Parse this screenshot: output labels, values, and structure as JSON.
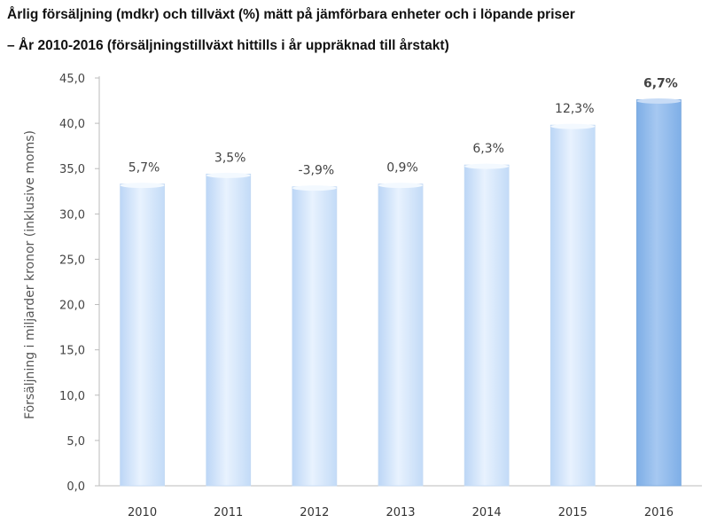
{
  "chart_data": {
    "type": "bar",
    "title": "Årlig försäljning (mdkr) och tillväxt (%) mätt på jämförbara enheter och i löpande priser",
    "subtitle": "– År 2010-2016 (försäljningstillväxt hittills i år uppräknad till årstakt)",
    "xlabel": "",
    "ylabel": "Försäljning i miljarder kronor (inklusive moms)",
    "ylim": [
      0,
      45
    ],
    "yticks": [
      "0,0",
      "5,0",
      "10,0",
      "15,0",
      "20,0",
      "25,0",
      "30,0",
      "35,0",
      "40,0",
      "45,0"
    ],
    "categories": [
      "2010",
      "2011",
      "2012",
      "2013",
      "2014",
      "2015",
      "2016"
    ],
    "values": [
      33.3,
      34.4,
      33.0,
      33.3,
      35.4,
      39.8,
      42.6
    ],
    "data_labels": [
      "5,7%",
      "3,5%",
      "-3,9%",
      "0,9%",
      "6,3%",
      "12,3%",
      "6,7%"
    ],
    "grid": false,
    "legend": "none",
    "colors": {
      "bar": "#cfe3fb",
      "highlight_bar": "#8db8ea",
      "highlight_label": "#444444"
    },
    "highlight_index": 6
  }
}
